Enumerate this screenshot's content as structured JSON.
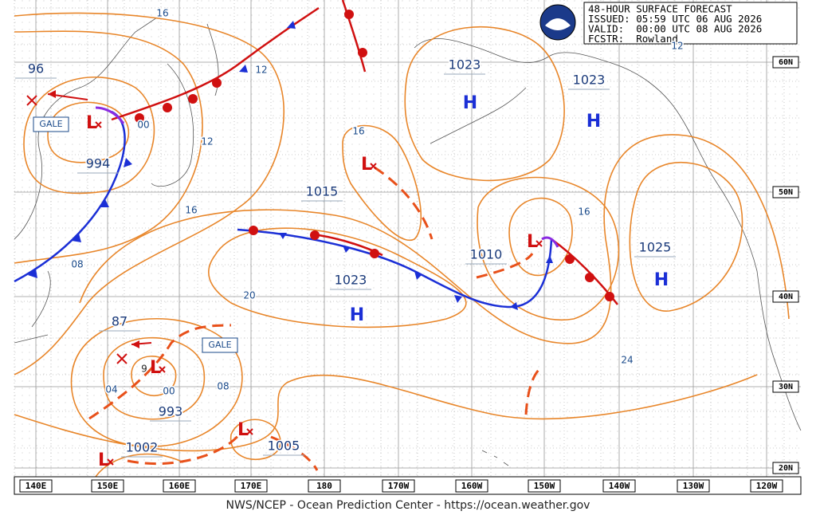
{
  "header": {
    "lines": [
      "48-HOUR SURFACE FORECAST",
      "ISSUED: 05:59 UTC 06 AUG 2026",
      "VALID:  00:00 UTC 08 AUG 2026",
      "FCSTR:  Rowland"
    ]
  },
  "footer": "NWS/NCEP - Ocean Prediction Center - https://ocean.weather.gov",
  "longitudes": [
    "140E",
    "150E",
    "160E",
    "170E",
    "180",
    "170W",
    "160W",
    "150W",
    "140W",
    "130W",
    "120W"
  ],
  "latitudes": [
    "60N",
    "50N",
    "40N",
    "30N",
    "20N"
  ],
  "pressure_labels": [
    "96",
    "994",
    "1023",
    "1023",
    "1015",
    "1023",
    "1010",
    "1025",
    "87",
    "993",
    "1002",
    "1005"
  ],
  "isobar_labels": [
    "16",
    "12",
    "12",
    "16",
    "16",
    "16",
    "20",
    "08",
    "04",
    "00",
    "08",
    "24",
    "00",
    "12"
  ],
  "highs": [
    "H",
    "H",
    "H",
    "H"
  ],
  "lows": [
    "L",
    "L",
    "L",
    "L",
    "L",
    "L"
  ],
  "gale_labels": [
    "GALE",
    "GALE"
  ],
  "low_digit": "9"
}
